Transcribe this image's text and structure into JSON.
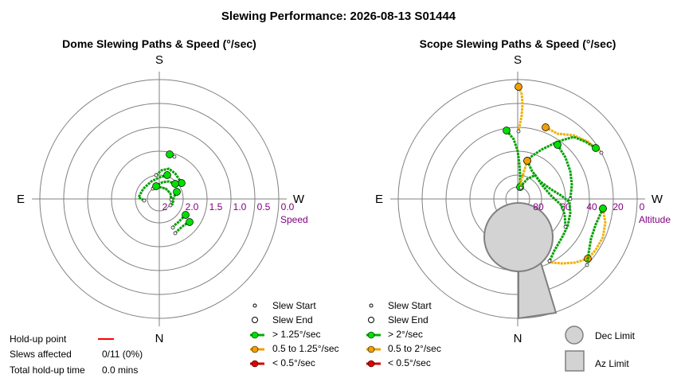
{
  "title": "Slewing Performance: 2026-08-13 S01444",
  "dome": {
    "title": "Dome Slewing Paths & Speed (°/sec)",
    "compass": {
      "S": "S",
      "N": "N",
      "E": "E",
      "W": "W"
    },
    "ring_labels": [
      "2",
      "2.0",
      "1.5",
      "1.0",
      "0.5",
      "0.0"
    ],
    "axis_label": "Speed",
    "legend": [
      {
        "label": "Slew Start",
        "marker": "small-circle"
      },
      {
        "label": "Slew End",
        "marker": "open-circle"
      },
      {
        "label": "> 1.25°/sec",
        "color": "#00b000"
      },
      {
        "label": "0.5 to 1.25°/sec",
        "color": "#f0a000"
      },
      {
        "label": "< 0.5°/sec",
        "color": "#d00000"
      }
    ]
  },
  "scope": {
    "title": "Scope Slewing Paths & Speed (°/sec)",
    "compass": {
      "S": "S",
      "N": "N",
      "E": "E",
      "W": "W"
    },
    "ring_labels": [
      "80",
      "60",
      "40",
      "20",
      "0"
    ],
    "axis_label": "Altitude",
    "legend": [
      {
        "label": "Slew Start",
        "marker": "small-circle"
      },
      {
        "label": "Slew End",
        "marker": "open-circle"
      },
      {
        "label": "> 2°/sec",
        "color": "#00b000"
      },
      {
        "label": "0.5 to 2°/sec",
        "color": "#f0a000"
      },
      {
        "label": "< 0.5°/sec",
        "color": "#d00000"
      }
    ],
    "limits_legend": [
      {
        "label": "Dec Limit"
      },
      {
        "label": "Az Limit"
      }
    ]
  },
  "holdup": {
    "point_label": "Hold-up point",
    "point_color": "#ff0000",
    "slews_label": "Slews affected",
    "slews_value": "0/11 (0%)",
    "total_label": "Total hold-up time",
    "total_value": "0.0 mins"
  },
  "chart_data": [
    {
      "type": "scatter",
      "title": "Dome Slewing Paths & Speed (°/sec)",
      "radial_label": "Speed",
      "radial_range": [
        2.5,
        0.0
      ],
      "radial_ticks": [
        2.0,
        1.5,
        1.0,
        0.5,
        0.0
      ],
      "azimuth_labels": {
        "top": "S",
        "bottom": "N",
        "left": "E",
        "right": "W"
      },
      "paths": [
        {
          "speed_band": "> 1.25°/sec",
          "points": [
            [
              213,
              194
            ],
            [
              219,
              197
            ]
          ]
        },
        {
          "speed_band": "> 1.25°/sec",
          "points": [
            [
              228,
              230
            ],
            [
              220,
              218
            ],
            [
              212,
              212
            ],
            [
              203,
              214
            ],
            [
              196,
              220
            ]
          ]
        },
        {
          "speed_band": "> 1.25°/sec",
          "points": [
            [
              220,
              231
            ],
            [
              212,
              228
            ],
            [
              204,
              229
            ],
            [
              197,
              233
            ],
            [
              192,
              237
            ]
          ]
        },
        {
          "speed_band": "> 1.25°/sec",
          "points": [
            [
              210,
              220
            ],
            [
              200,
              223
            ],
            [
              190,
              228
            ],
            [
              180,
              237
            ],
            [
              174,
              248
            ],
            [
              181,
              252
            ]
          ]
        },
        {
          "speed_band": "> 1.25°/sec",
          "points": [
            [
              196,
              234
            ],
            [
              208,
              237
            ],
            [
              214,
              243
            ],
            [
              215,
              251
            ]
          ]
        },
        {
          "speed_band": "> 1.25°/sec",
          "points": [
            [
              222,
              241
            ],
            [
              218,
              248
            ],
            [
              217,
              256
            ],
            [
              214,
              258
            ]
          ]
        },
        {
          "speed_band": "> 1.25°/sec",
          "points": [
            [
              233,
              270
            ],
            [
              228,
              275
            ],
            [
              223,
              280
            ],
            [
              219,
              283
            ],
            [
              217,
              286
            ]
          ]
        },
        {
          "speed_band": "> 1.25°/sec",
          "points": [
            [
              238,
              279
            ],
            [
              231,
              283
            ],
            [
              225,
              288
            ],
            [
              220,
              293
            ]
          ]
        }
      ]
    },
    {
      "type": "scatter",
      "title": "Scope Slewing Paths & Speed (°/sec)",
      "radial_label": "Altitude",
      "radial_range": [
        90,
        0
      ],
      "radial_ticks": [
        80,
        60,
        40,
        20,
        0
      ],
      "azimuth_labels": {
        "top": "S",
        "bottom": "N",
        "left": "E",
        "right": "W"
      },
      "paths": [
        {
          "speed_band": "0.5 to 2°/sec",
          "points": [
            [
              651,
              109
            ],
            [
              655,
              118
            ],
            [
              656,
              130
            ],
            [
              655,
              145
            ],
            [
              652,
              160
            ],
            [
              651,
              165
            ]
          ]
        },
        {
          "speed_band": "> 2°/sec",
          "points": [
            [
              636,
              164
            ],
            [
              645,
              175
            ],
            [
              650,
              190
            ],
            [
              652,
              205
            ],
            [
              653,
              220
            ],
            [
              653,
              235
            ]
          ]
        },
        {
          "speed_band": "0.5 to 2°/sec",
          "points": [
            [
              685,
              160
            ],
            [
              700,
              168
            ],
            [
              720,
              170
            ],
            [
              738,
              178
            ],
            [
              748,
              186
            ],
            [
              755,
              192
            ]
          ]
        },
        {
          "speed_band": "> 2°/sec",
          "points": [
            [
              748,
              186
            ],
            [
              735,
              178
            ],
            [
              720,
              172
            ],
            [
              700,
              178
            ],
            [
              680,
              188
            ],
            [
              668,
              196
            ],
            [
              662,
              202
            ]
          ]
        },
        {
          "speed_band": "> 2°/sec",
          "points": [
            [
              662,
              202
            ],
            [
              668,
              215
            ],
            [
              678,
              228
            ],
            [
              692,
              238
            ],
            [
              705,
              246
            ],
            [
              715,
              254
            ],
            [
              716,
              268
            ],
            [
              713,
              283
            ],
            [
              707,
              296
            ],
            [
              696,
              315
            ],
            [
              690,
              328
            ]
          ]
        },
        {
          "speed_band": "> 2°/sec",
          "points": [
            [
              653,
              235
            ],
            [
              662,
              225
            ],
            [
              672,
              220
            ],
            [
              680,
              232
            ],
            [
              692,
              246
            ],
            [
              705,
              258
            ],
            [
              709,
              270
            ],
            [
              710,
              285
            ]
          ]
        },
        {
          "speed_band": "> 2°/sec",
          "points": [
            [
              700,
              182
            ],
            [
              710,
              198
            ],
            [
              716,
              215
            ],
            [
              718,
              232
            ],
            [
              716,
              250
            ]
          ]
        },
        {
          "speed_band": "0.5 to 2°/sec",
          "points": [
            [
              662,
              202
            ],
            [
              658,
              215
            ],
            [
              654,
              228
            ],
            [
              654,
              236
            ]
          ]
        },
        {
          "speed_band": "0.5 to 2°/sec",
          "points": [
            [
              757,
              262
            ],
            [
              760,
              280
            ],
            [
              757,
              298
            ],
            [
              748,
              314
            ],
            [
              738,
              325
            ]
          ]
        },
        {
          "speed_band": "0.5 to 2°/sec",
          "points": [
            [
              738,
              325
            ],
            [
              722,
              330
            ],
            [
              706,
              331
            ],
            [
              693,
              330
            ],
            [
              690,
              328
            ]
          ]
        },
        {
          "speed_band": "> 2°/sec",
          "points": [
            [
              757,
              262
            ],
            [
              748,
              282
            ],
            [
              742,
              300
            ],
            [
              739,
              318
            ],
            [
              737,
              333
            ]
          ]
        }
      ]
    }
  ]
}
